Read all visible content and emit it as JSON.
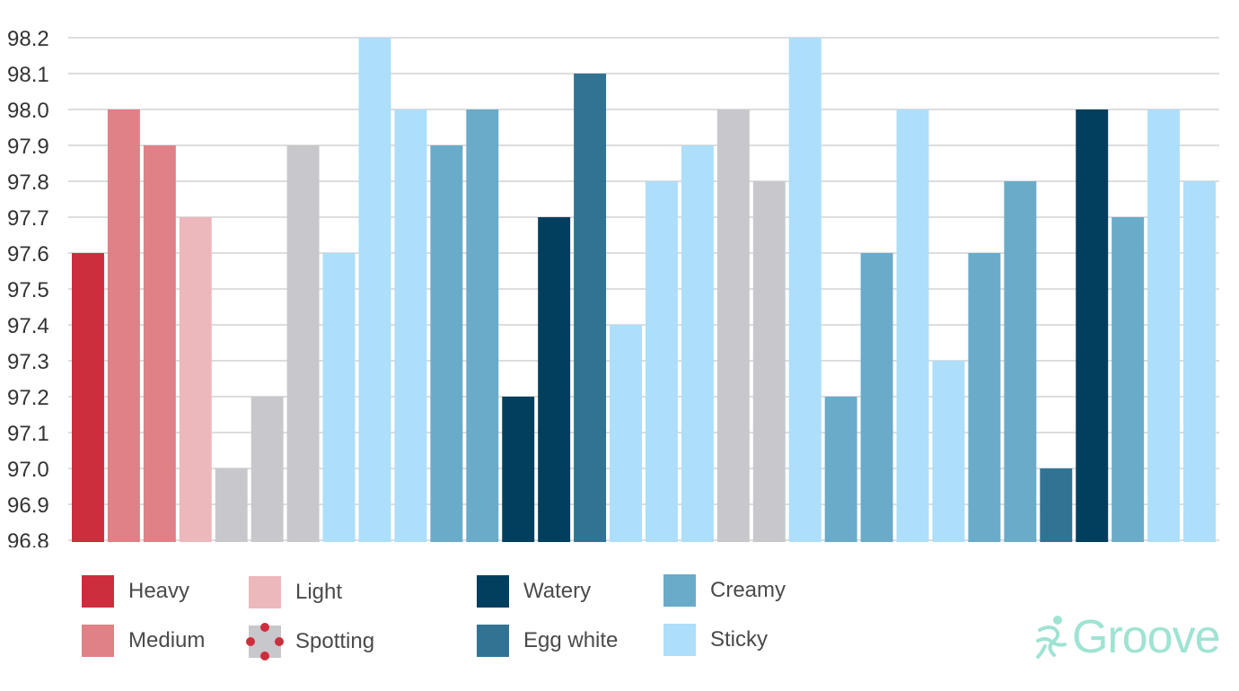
{
  "chart_data": {
    "type": "bar",
    "ylim": [
      96.8,
      98.2
    ],
    "y_ticks": [
      "96.8",
      "96.9",
      "97.0",
      "97.1",
      "97.2",
      "97.3",
      "97.4",
      "97.5",
      "97.6",
      "97.7",
      "97.8",
      "97.9",
      "98.0",
      "98.1",
      "98.2"
    ],
    "grid": true,
    "legend_position": "bottom",
    "values": [
      97.6,
      98.0,
      97.9,
      97.7,
      97.0,
      97.2,
      97.9,
      97.6,
      98.2,
      98.0,
      97.9,
      98.0,
      97.2,
      97.7,
      98.1,
      97.4,
      97.8,
      97.9,
      98.0,
      97.8,
      98.2,
      97.2,
      97.6,
      98.0,
      97.3,
      97.6,
      97.8,
      97.0,
      98.0,
      97.7,
      98.0,
      97.8
    ],
    "bar_category": [
      "heavy",
      "medium",
      "medium",
      "light",
      "gray",
      "gray",
      "gray",
      "sticky",
      "sticky",
      "sticky",
      "creamy",
      "creamy",
      "watery",
      "watery",
      "egg_white",
      "sticky",
      "sticky",
      "sticky",
      "gray",
      "gray",
      "sticky",
      "creamy",
      "creamy",
      "sticky",
      "sticky",
      "creamy",
      "creamy",
      "egg_white",
      "watery",
      "creamy",
      "sticky",
      "sticky"
    ],
    "colors": {
      "heavy": "#cc2e3d",
      "medium": "#e08087",
      "light": "#ecb8bb",
      "gray": "#c8c7cc",
      "watery": "#023f5f",
      "egg_white": "#327394",
      "creamy": "#6aabc9",
      "sticky": "#addefa",
      "grid": "#dddddd",
      "brand": "#9fe3d3"
    }
  },
  "legend": {
    "heavy": "Heavy",
    "medium": "Medium",
    "light": "Light",
    "spotting": "Spotting",
    "watery": "Watery",
    "egg_white": "Egg white",
    "creamy": "Creamy",
    "sticky": "Sticky"
  },
  "brand": {
    "name": "Groove"
  }
}
